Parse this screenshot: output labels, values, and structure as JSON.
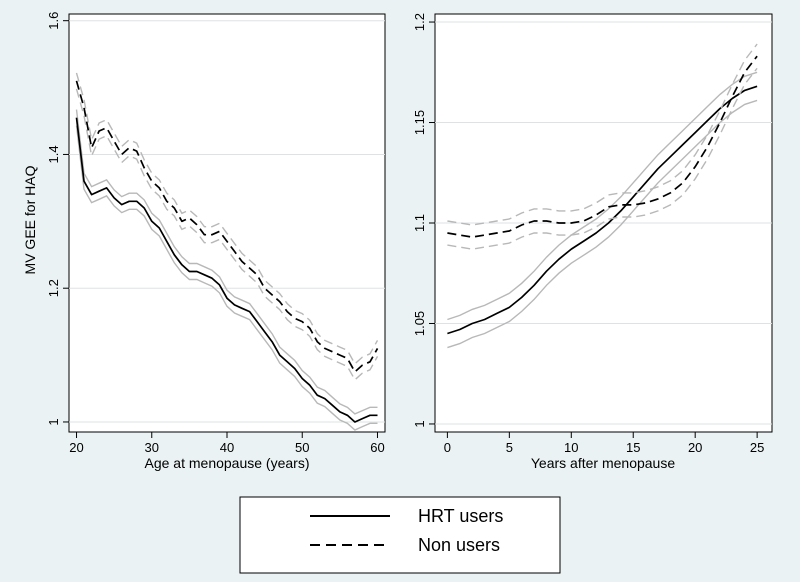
{
  "legend": {
    "items": [
      {
        "label": "HRT users",
        "style": "solid"
      },
      {
        "label": "Non users",
        "style": "dashed"
      }
    ]
  },
  "colors": {
    "background": "#eaf2f3",
    "plot_background": "#ffffff",
    "grid": "#dde3e5",
    "estimate_line": "#000000",
    "ci_line": "#b8b8b8"
  },
  "chart_data": [
    {
      "type": "line",
      "title": "",
      "xlabel": "Age at menopause (years)",
      "ylabel": "MV GEE for HAQ",
      "xlim": [
        19,
        61
      ],
      "ylim": [
        0.985,
        1.61
      ],
      "xticks": [
        20,
        30,
        40,
        50,
        60
      ],
      "yticks": [
        1,
        1.2,
        1.4,
        1.6
      ],
      "ytick_labels": [
        "1",
        "1.2",
        "1.4",
        "1.6"
      ],
      "grid": true,
      "series": [
        {
          "name": "HRT users",
          "style": "solid",
          "ci_half_width": 0.012,
          "x": [
            20,
            21,
            22,
            23,
            24,
            25,
            26,
            27,
            28,
            29,
            30,
            31,
            32,
            33,
            34,
            35,
            36,
            37,
            38,
            39,
            40,
            41,
            42,
            43,
            44,
            45,
            46,
            47,
            48,
            49,
            50,
            51,
            52,
            53,
            54,
            55,
            56,
            57,
            58,
            59,
            60
          ],
          "y": [
            1.455,
            1.36,
            1.34,
            1.345,
            1.35,
            1.335,
            1.325,
            1.33,
            1.33,
            1.32,
            1.3,
            1.29,
            1.27,
            1.25,
            1.235,
            1.225,
            1.225,
            1.22,
            1.215,
            1.205,
            1.185,
            1.175,
            1.17,
            1.165,
            1.15,
            1.135,
            1.12,
            1.1,
            1.09,
            1.08,
            1.065,
            1.055,
            1.04,
            1.035,
            1.025,
            1.015,
            1.01,
            1.0,
            1.005,
            1.01,
            1.01
          ]
        },
        {
          "name": "Non users",
          "style": "dashed",
          "ci_half_width": 0.012,
          "x": [
            20,
            21,
            22,
            23,
            24,
            25,
            26,
            27,
            28,
            29,
            30,
            31,
            32,
            33,
            34,
            35,
            36,
            37,
            38,
            39,
            40,
            41,
            42,
            43,
            44,
            45,
            46,
            47,
            48,
            49,
            50,
            51,
            52,
            53,
            54,
            55,
            56,
            57,
            58,
            59,
            60
          ],
          "y": [
            1.51,
            1.47,
            1.41,
            1.435,
            1.44,
            1.42,
            1.4,
            1.41,
            1.405,
            1.38,
            1.36,
            1.35,
            1.33,
            1.32,
            1.3,
            1.305,
            1.295,
            1.28,
            1.28,
            1.285,
            1.27,
            1.255,
            1.24,
            1.23,
            1.22,
            1.2,
            1.19,
            1.18,
            1.165,
            1.155,
            1.15,
            1.14,
            1.12,
            1.11,
            1.105,
            1.1,
            1.095,
            1.075,
            1.085,
            1.09,
            1.11
          ]
        }
      ]
    },
    {
      "type": "line",
      "title": "",
      "xlabel": "Years after menopause",
      "ylabel": "",
      "xlim": [
        -1,
        26.2
      ],
      "ylim": [
        0.996,
        1.204
      ],
      "xticks": [
        0,
        5,
        10,
        15,
        20,
        25
      ],
      "yticks": [
        1,
        1.05,
        1.1,
        1.15,
        1.2
      ],
      "ytick_labels": [
        "1",
        "1.05",
        "1.1",
        "1.15",
        "1.2"
      ],
      "grid": true,
      "series": [
        {
          "name": "HRT users",
          "style": "solid",
          "ci_half_width": 0.007,
          "x": [
            0,
            1,
            2,
            3,
            4,
            5,
            6,
            7,
            8,
            9,
            10,
            11,
            12,
            13,
            14,
            15,
            16,
            17,
            18,
            19,
            20,
            21,
            22,
            23,
            24,
            25
          ],
          "y": [
            1.045,
            1.047,
            1.05,
            1.052,
            1.055,
            1.058,
            1.063,
            1.069,
            1.076,
            1.082,
            1.087,
            1.091,
            1.095,
            1.1,
            1.106,
            1.113,
            1.12,
            1.127,
            1.133,
            1.139,
            1.145,
            1.151,
            1.157,
            1.162,
            1.166,
            1.168
          ]
        },
        {
          "name": "Non users",
          "style": "dashed",
          "ci_half_width": 0.006,
          "x": [
            0,
            1,
            2,
            3,
            4,
            5,
            6,
            7,
            8,
            9,
            10,
            11,
            12,
            13,
            14,
            15,
            16,
            17,
            18,
            19,
            20,
            21,
            22,
            23,
            24,
            25
          ],
          "y": [
            1.095,
            1.094,
            1.093,
            1.094,
            1.095,
            1.096,
            1.099,
            1.101,
            1.101,
            1.1,
            1.1,
            1.101,
            1.104,
            1.108,
            1.109,
            1.109,
            1.11,
            1.112,
            1.115,
            1.12,
            1.128,
            1.138,
            1.15,
            1.163,
            1.175,
            1.183
          ]
        }
      ]
    }
  ]
}
